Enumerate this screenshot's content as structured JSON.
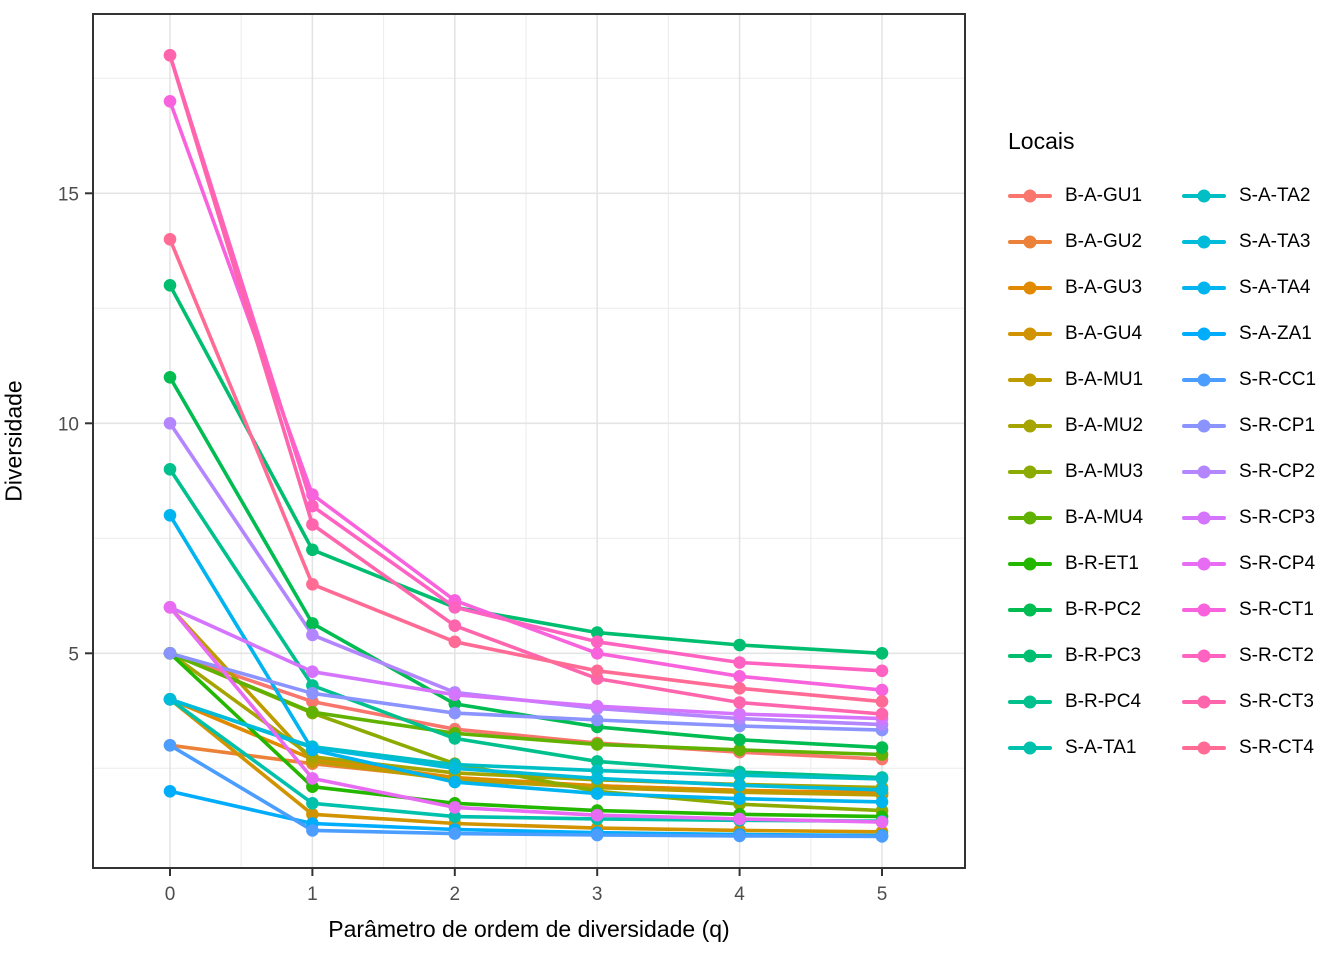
{
  "figure": {
    "x_axis_title": "Parâmetro de ordem de diversidade (q)",
    "y_axis_title": "Diversidade"
  },
  "legend": {
    "title": "Locais",
    "columns": 2,
    "position": "right"
  },
  "chart_data": {
    "type": "line",
    "title": "",
    "xlabel": "Parâmetro de ordem de diversidade (q)",
    "ylabel": "Diversidade",
    "x": [
      0,
      1,
      2,
      3,
      4,
      5
    ],
    "x_tick_labels": [
      "0",
      "1",
      "2",
      "3",
      "4",
      "5"
    ],
    "y_tick_labels": [
      "5",
      "10",
      "15"
    ],
    "y_major_ticks": [
      5,
      10,
      15
    ],
    "y_minor_ticks": [
      2.5,
      7.5,
      12.5,
      17.5
    ],
    "x_major_ticks": [
      0,
      1,
      2,
      3,
      4,
      5
    ],
    "x_minor_ticks": [
      0.5,
      1.5,
      2.5,
      3.5,
      4.5
    ],
    "xlim": [
      -0.54,
      5.58
    ],
    "ylim": [
      0.33,
      18.9
    ],
    "grid": true,
    "legend_title": "Locais",
    "legend_position": "right",
    "marker": "filled-circle",
    "series": [
      {
        "name": "B-A-GU1",
        "color": "#F8766D",
        "values": [
          5,
          3.95,
          3.35,
          3.05,
          2.85,
          2.7
        ]
      },
      {
        "name": "B-A-GU2",
        "color": "#EC8239",
        "values": [
          3,
          2.6,
          2.28,
          2.12,
          2.02,
          1.95
        ]
      },
      {
        "name": "B-A-GU3",
        "color": "#E18A00",
        "values": [
          4,
          2.7,
          2.3,
          2.12,
          2.02,
          1.97
        ]
      },
      {
        "name": "B-A-GU4",
        "color": "#D19300",
        "values": [
          4,
          1.5,
          1.3,
          1.2,
          1.15,
          1.12
        ]
      },
      {
        "name": "B-A-MU1",
        "color": "#BE9C00",
        "values": [
          6,
          2.65,
          2.25,
          2.08,
          1.98,
          1.92
        ]
      },
      {
        "name": "B-A-MU2",
        "color": "#A6A400",
        "values": [
          5,
          2.75,
          2.4,
          2.25,
          2.15,
          2.08
        ]
      },
      {
        "name": "B-A-MU3",
        "color": "#8CAB00",
        "values": [
          5,
          3.7,
          2.6,
          2.0,
          1.72,
          1.58
        ]
      },
      {
        "name": "B-A-MU4",
        "color": "#61B200",
        "values": [
          5,
          3.72,
          3.26,
          3.02,
          2.9,
          2.8
        ]
      },
      {
        "name": "B-R-ET1",
        "color": "#24B700",
        "values": [
          5,
          2.1,
          1.74,
          1.58,
          1.5,
          1.45
        ]
      },
      {
        "name": "B-R-PC2",
        "color": "#00BC51",
        "values": [
          11,
          5.65,
          3.9,
          3.4,
          3.12,
          2.95
        ]
      },
      {
        "name": "B-R-PC3",
        "color": "#00BE70",
        "values": [
          13,
          7.25,
          6.0,
          5.45,
          5.18,
          5.0
        ]
      },
      {
        "name": "B-R-PC4",
        "color": "#00C08E",
        "values": [
          9,
          4.3,
          3.15,
          2.65,
          2.42,
          2.3
        ]
      },
      {
        "name": "S-A-TA1",
        "color": "#00C1AB",
        "values": [
          4,
          1.74,
          1.45,
          1.4,
          1.37,
          1.35
        ]
      },
      {
        "name": "S-A-TA2",
        "color": "#00BFC4",
        "values": [
          4,
          2.97,
          2.58,
          2.45,
          2.35,
          2.27
        ]
      },
      {
        "name": "S-A-TA3",
        "color": "#00BBDA",
        "values": [
          4,
          2.95,
          2.5,
          2.28,
          2.13,
          2.03
        ]
      },
      {
        "name": "S-A-TA4",
        "color": "#00B4EF",
        "values": [
          8,
          2.9,
          2.2,
          1.95,
          1.84,
          1.77
        ]
      },
      {
        "name": "S-A-ZA1",
        "color": "#00ACFC",
        "values": [
          2,
          1.3,
          1.17,
          1.1,
          1.06,
          1.04
        ]
      },
      {
        "name": "S-R-CC1",
        "color": "#4B9EFF",
        "values": [
          3,
          1.15,
          1.08,
          1.05,
          1.03,
          1.02
        ]
      },
      {
        "name": "S-R-CP1",
        "color": "#8B93FF",
        "values": [
          5,
          4.13,
          3.7,
          3.55,
          3.42,
          3.33
        ]
      },
      {
        "name": "S-R-CP2",
        "color": "#B385FF",
        "values": [
          10,
          5.4,
          4.15,
          3.8,
          3.58,
          3.45
        ]
      },
      {
        "name": "S-R-CP3",
        "color": "#D575FE",
        "values": [
          6,
          4.6,
          4.1,
          3.85,
          3.68,
          3.58
        ]
      },
      {
        "name": "S-R-CP4",
        "color": "#E76BF3",
        "values": [
          6,
          2.28,
          1.65,
          1.48,
          1.4,
          1.33
        ]
      },
      {
        "name": "S-R-CT1",
        "color": "#F962DD",
        "values": [
          17,
          8.45,
          6.15,
          5.0,
          4.5,
          4.2
        ]
      },
      {
        "name": "S-R-CT2",
        "color": "#FF62C1",
        "values": [
          18,
          8.2,
          6.0,
          5.25,
          4.8,
          4.62
        ]
      },
      {
        "name": "S-R-CT3",
        "color": "#FF65AC",
        "values": [
          18,
          7.8,
          5.6,
          4.45,
          3.93,
          3.68
        ]
      },
      {
        "name": "S-R-CT4",
        "color": "#FF6B94",
        "values": [
          14,
          6.5,
          5.25,
          4.62,
          4.24,
          3.95
        ]
      }
    ]
  }
}
